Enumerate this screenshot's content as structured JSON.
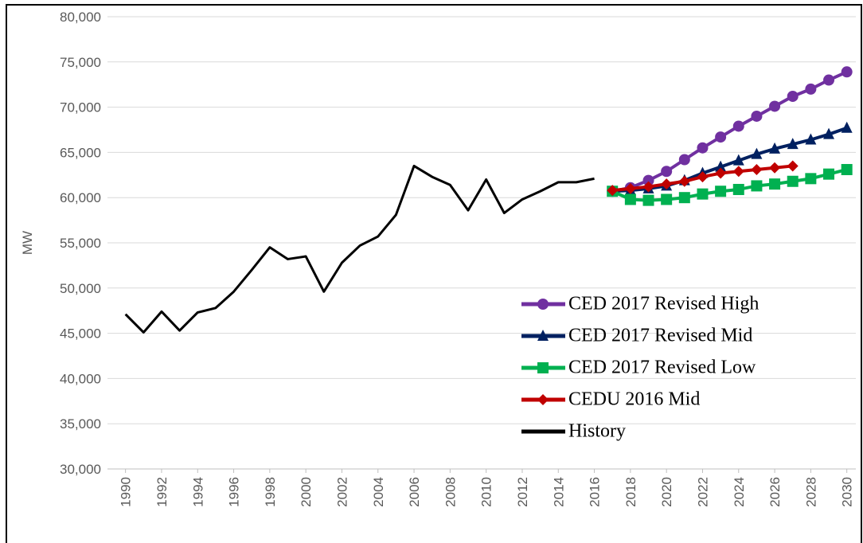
{
  "chart_data": {
    "type": "line",
    "y_label": "MW",
    "x": [
      1990,
      1991,
      1992,
      1993,
      1994,
      1995,
      1996,
      1997,
      1998,
      1999,
      2000,
      2001,
      2002,
      2003,
      2004,
      2005,
      2006,
      2007,
      2008,
      2009,
      2010,
      2011,
      2012,
      2013,
      2014,
      2015,
      2016,
      2017,
      2018,
      2019,
      2020,
      2021,
      2022,
      2023,
      2024,
      2025,
      2026,
      2027,
      2028,
      2029,
      2030
    ],
    "xlim": [
      1989,
      2030.5
    ],
    "xticks": [
      1990,
      1992,
      1994,
      1996,
      1998,
      2000,
      2002,
      2004,
      2006,
      2008,
      2010,
      2012,
      2014,
      2016,
      2018,
      2020,
      2022,
      2024,
      2026,
      2028,
      2030
    ],
    "ylim": [
      30000,
      80000
    ],
    "yticks": [
      {
        "value": 30000,
        "label": "30,000"
      },
      {
        "value": 35000,
        "label": "35,000"
      },
      {
        "value": 40000,
        "label": "40,000"
      },
      {
        "value": 45000,
        "label": "45,000"
      },
      {
        "value": 50000,
        "label": "50,000"
      },
      {
        "value": 55000,
        "label": "55,000"
      },
      {
        "value": 60000,
        "label": "60,000"
      },
      {
        "value": 65000,
        "label": "65,000"
      },
      {
        "value": 70000,
        "label": "70,000"
      },
      {
        "value": 75000,
        "label": "75,000"
      },
      {
        "value": 80000,
        "label": "80,000"
      }
    ],
    "grid": true,
    "legend": "lower right",
    "series": [
      {
        "name": "CED 2017 Revised High",
        "color": "#7030a0",
        "marker": "circle",
        "values": [
          null,
          null,
          null,
          null,
          null,
          null,
          null,
          null,
          null,
          null,
          null,
          null,
          null,
          null,
          null,
          null,
          null,
          null,
          null,
          null,
          null,
          null,
          null,
          null,
          null,
          null,
          null,
          60700,
          61100,
          61900,
          62900,
          64200,
          65500,
          66700,
          67900,
          69000,
          70100,
          71200,
          72000,
          73000,
          73900
        ]
      },
      {
        "name": "CED 2017 Revised Mid",
        "color": "#002060",
        "marker": "triangle",
        "values": [
          null,
          null,
          null,
          null,
          null,
          null,
          null,
          null,
          null,
          null,
          null,
          null,
          null,
          null,
          null,
          null,
          null,
          null,
          null,
          null,
          null,
          null,
          null,
          null,
          null,
          null,
          null,
          60700,
          60800,
          61000,
          61300,
          61900,
          62700,
          63400,
          64100,
          64800,
          65400,
          65900,
          66400,
          67000,
          67700
        ]
      },
      {
        "name": "CED 2017 Revised Low",
        "color": "#00b050",
        "marker": "square",
        "values": [
          null,
          null,
          null,
          null,
          null,
          null,
          null,
          null,
          null,
          null,
          null,
          null,
          null,
          null,
          null,
          null,
          null,
          null,
          null,
          null,
          null,
          null,
          null,
          null,
          null,
          null,
          null,
          60700,
          59800,
          59700,
          59800,
          60000,
          60400,
          60700,
          60900,
          61300,
          61500,
          61800,
          62100,
          62600,
          63100
        ]
      },
      {
        "name": "CEDU 2016 Mid",
        "color": "#c00000",
        "marker": "diamond",
        "values": [
          null,
          null,
          null,
          null,
          null,
          null,
          null,
          null,
          null,
          null,
          null,
          null,
          null,
          null,
          null,
          null,
          null,
          null,
          null,
          null,
          null,
          null,
          null,
          null,
          null,
          null,
          null,
          60800,
          61000,
          61200,
          61500,
          61800,
          62300,
          62700,
          62900,
          63100,
          63300,
          63500,
          null,
          null,
          null
        ]
      },
      {
        "name": "History",
        "color": "#000000",
        "values": [
          47100,
          45100,
          47400,
          45300,
          47300,
          47800,
          49600,
          52000,
          54500,
          53200,
          53500,
          49600,
          52800,
          54700,
          55700,
          58100,
          63500,
          62300,
          61400,
          58600,
          62000,
          58300,
          59800,
          60700,
          61700,
          61700,
          62100,
          null,
          null,
          null,
          null,
          null,
          null,
          null,
          null,
          null,
          null,
          null,
          null,
          null,
          null
        ]
      }
    ]
  }
}
